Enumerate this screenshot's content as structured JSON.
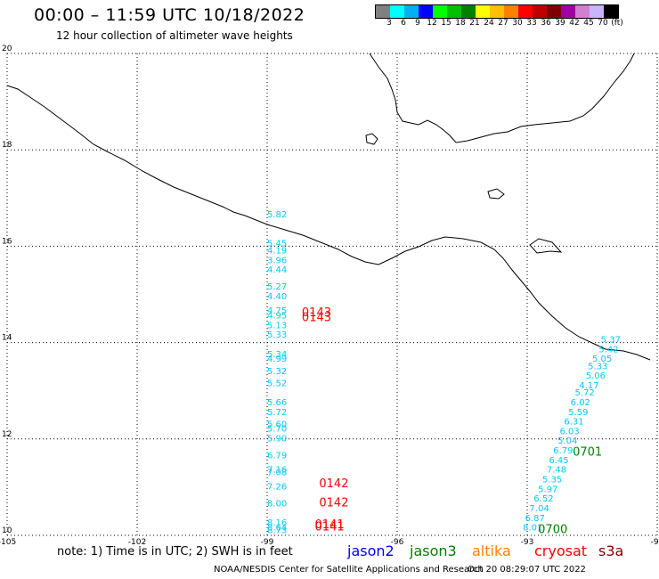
{
  "header": {
    "title": "00:00 – 11:59 UTC 10/18/2022",
    "subtitle": "12 hour collection of altimeter wave heights"
  },
  "colorbar": {
    "swatches": [
      "#808080",
      "#00ffff",
      "#00b0f0",
      "#0000ff",
      "#00ff00",
      "#00c000",
      "#008000",
      "#ffff00",
      "#ffc000",
      "#ff8000",
      "#ff0000",
      "#c00000",
      "#800000",
      "#a000a0",
      "#d080d0",
      "#c8b4ff",
      "#000000"
    ],
    "labels": [
      "3",
      "6",
      "9",
      "12",
      "15",
      "18",
      "21",
      "24",
      "27",
      "30",
      "33",
      "36",
      "39",
      "42",
      "45",
      "70",
      "(ft)"
    ]
  },
  "map": {
    "lon_range": [
      -105,
      -90
    ],
    "lat_range": [
      10,
      20
    ],
    "lon_ticks": [
      "-105",
      "-102",
      "-99",
      "-96",
      "-93",
      "-90"
    ],
    "lat_ticks": [
      "20",
      "18",
      "16",
      "14",
      "12",
      "10"
    ],
    "grid_color": "#000000",
    "jason3_track": {
      "color": "#00c8ff",
      "points": [
        {
          "lon": -99.0,
          "lat": 16.6,
          "v": "5.82"
        },
        {
          "lon": -99.0,
          "lat": 16.0,
          "v": "5.45"
        },
        {
          "lon": -99.0,
          "lat": 15.85,
          "v": "4.19"
        },
        {
          "lon": -99.0,
          "lat": 15.65,
          "v": "3.96"
        },
        {
          "lon": -99.0,
          "lat": 15.45,
          "v": "4.44"
        },
        {
          "lon": -99.0,
          "lat": 15.1,
          "v": "5.27"
        },
        {
          "lon": -99.0,
          "lat": 14.9,
          "v": "4.40"
        },
        {
          "lon": -99.0,
          "lat": 14.6,
          "v": "4.75"
        },
        {
          "lon": -99.0,
          "lat": 14.5,
          "v": "4.95"
        },
        {
          "lon": -99.0,
          "lat": 14.3,
          "v": "5.13"
        },
        {
          "lon": -99.0,
          "lat": 14.1,
          "v": "5.33"
        },
        {
          "lon": -99.0,
          "lat": 13.7,
          "v": "5.34"
        },
        {
          "lon": -99.0,
          "lat": 13.6,
          "v": "4.99"
        },
        {
          "lon": -99.0,
          "lat": 13.35,
          "v": "5.32"
        },
        {
          "lon": -99.0,
          "lat": 13.1,
          "v": "5.52"
        },
        {
          "lon": -99.0,
          "lat": 12.7,
          "v": "5.66"
        },
        {
          "lon": -99.0,
          "lat": 12.5,
          "v": "5.72"
        },
        {
          "lon": -99.0,
          "lat": 12.25,
          "v": "5.60"
        },
        {
          "lon": -99.0,
          "lat": 12.15,
          "v": "5.70"
        },
        {
          "lon": -99.0,
          "lat": 11.95,
          "v": "5.90"
        },
        {
          "lon": -99.0,
          "lat": 11.6,
          "v": "6.79"
        },
        {
          "lon": -99.0,
          "lat": 11.3,
          "v": "7.16"
        },
        {
          "lon": -99.0,
          "lat": 11.25,
          "v": "7.08"
        },
        {
          "lon": -99.0,
          "lat": 10.95,
          "v": "7.26"
        },
        {
          "lon": -99.0,
          "lat": 10.6,
          "v": "8.00"
        },
        {
          "lon": -99.0,
          "lat": 10.2,
          "v": "8.16"
        },
        {
          "lon": -99.0,
          "lat": 10.1,
          "v": "8.64"
        },
        {
          "lon": -99.0,
          "lat": 10.05,
          "v": "8.73"
        }
      ]
    },
    "jason3_track_east": {
      "points": [
        {
          "lon": -91.3,
          "lat": 14.0,
          "v": "5.37"
        },
        {
          "lon": -91.35,
          "lat": 13.8,
          "v": "5.42"
        },
        {
          "lon": -91.5,
          "lat": 13.6,
          "v": "5.05"
        },
        {
          "lon": -91.6,
          "lat": 13.45,
          "v": "5.33"
        },
        {
          "lon": -91.65,
          "lat": 13.25,
          "v": "5.06"
        },
        {
          "lon": -91.8,
          "lat": 13.05,
          "v": "4.17"
        },
        {
          "lon": -91.9,
          "lat": 12.9,
          "v": "5.72"
        },
        {
          "lon": -92.0,
          "lat": 12.7,
          "v": "6.02"
        },
        {
          "lon": -92.05,
          "lat": 12.5,
          "v": "5.59"
        },
        {
          "lon": -92.15,
          "lat": 12.3,
          "v": "6.31"
        },
        {
          "lon": -92.25,
          "lat": 12.1,
          "v": "6.03"
        },
        {
          "lon": -92.3,
          "lat": 11.9,
          "v": "5.04"
        },
        {
          "lon": -92.4,
          "lat": 11.7,
          "v": "6.79"
        },
        {
          "lon": -92.5,
          "lat": 11.5,
          "v": "6.45"
        },
        {
          "lon": -92.55,
          "lat": 11.3,
          "v": "7.48"
        },
        {
          "lon": -92.65,
          "lat": 11.1,
          "v": "5.35"
        },
        {
          "lon": -92.75,
          "lat": 10.9,
          "v": "5.97"
        },
        {
          "lon": -92.85,
          "lat": 10.7,
          "v": "6.52"
        },
        {
          "lon": -92.95,
          "lat": 10.5,
          "v": "7.04"
        },
        {
          "lon": -93.05,
          "lat": 10.3,
          "v": "6.87"
        },
        {
          "lon": -93.1,
          "lat": 10.1,
          "v": "8.01"
        }
      ]
    },
    "time_labels": [
      {
        "lon": -98.2,
        "lat": 14.55,
        "text": "0143",
        "color": "#ff0000"
      },
      {
        "lon": -98.2,
        "lat": 14.45,
        "text": "0143",
        "color": "#ff0000"
      },
      {
        "lon": -97.8,
        "lat": 11.0,
        "text": "0142",
        "color": "#ff0000"
      },
      {
        "lon": -97.8,
        "lat": 10.6,
        "text": "0142",
        "color": "#ff0000"
      },
      {
        "lon": -97.9,
        "lat": 10.15,
        "text": "0141",
        "color": "#ff0000"
      },
      {
        "lon": -97.9,
        "lat": 10.1,
        "text": "0141",
        "color": "#ff0000"
      },
      {
        "lon": -91.95,
        "lat": 11.65,
        "text": "0701",
        "color": "#008000"
      },
      {
        "lon": -92.75,
        "lat": 10.05,
        "text": "0700",
        "color": "#008000"
      }
    ]
  },
  "footer": {
    "note": "note: 1) Time is in UTC; 2) SWH is in feet",
    "missions": [
      {
        "name": "jason2",
        "color": "#0000ff"
      },
      {
        "name": "jason3",
        "color": "#008000"
      },
      {
        "name": "altika",
        "color": "#ff8000"
      },
      {
        "name": "cryosat",
        "color": "#ff0000"
      },
      {
        "name": "s3a",
        "color": "#800000"
      }
    ],
    "credit": "NOAA/NESDIS Center for Satellite Applications and Research",
    "timestamp": "Oct 20 08:29:07 UTC 2022"
  }
}
